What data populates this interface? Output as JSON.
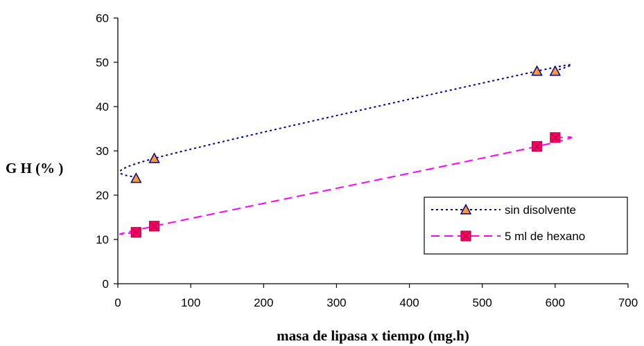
{
  "chart_data": {
    "type": "line",
    "xlabel": "masa de lipasa x tiempo (mg.h)",
    "ylabel": "G H (% )",
    "xlim": [
      0,
      700
    ],
    "ylim": [
      0,
      60
    ],
    "x_ticks": [
      0,
      100,
      200,
      300,
      400,
      500,
      600,
      700
    ],
    "y_ticks": [
      0,
      10,
      20,
      30,
      40,
      50,
      60
    ],
    "grid": false,
    "legend_position": "right",
    "series": [
      {
        "name": "sin disolvente",
        "marker": "triangle",
        "line_style": "dotted",
        "line_color": "#000080",
        "marker_fill": "#ff9933",
        "marker_edge": "#000080",
        "x": [
          25,
          50,
          575,
          600
        ],
        "y": [
          23.8,
          28.3,
          48.0,
          48.0
        ]
      },
      {
        "name": "5 ml de hexano",
        "marker": "square-x",
        "line_style": "dashed",
        "line_color": "#ff00ff",
        "marker_fill": "#ff0066",
        "marker_edge": "#b00040",
        "x": [
          25,
          50,
          575,
          600
        ],
        "y": [
          11.6,
          13.0,
          31.0,
          33.0
        ]
      }
    ]
  }
}
